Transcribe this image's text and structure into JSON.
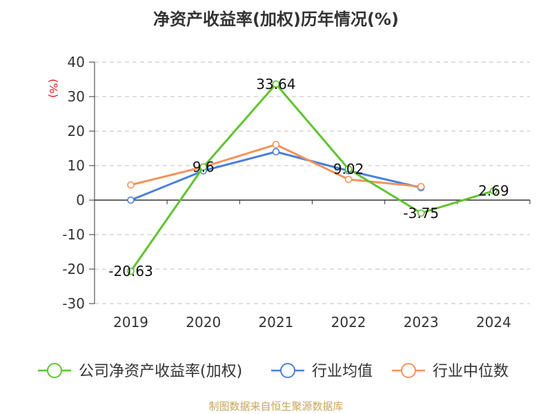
{
  "chart_data": {
    "type": "line",
    "title": "净资产收益率(加权)历年情况(%)",
    "ylabel": "(%)",
    "categories": [
      "2019",
      "2020",
      "2021",
      "2022",
      "2023",
      "2024"
    ],
    "ylim": [
      -30,
      40
    ],
    "yticks": [
      40,
      30,
      20,
      10,
      0,
      -10,
      -20,
      -30
    ],
    "grid": true,
    "legend_position": "bottom",
    "series": [
      {
        "name": "公司净资产收益率(加权)",
        "color": "#5fc330",
        "values": [
          -20.63,
          9.6,
          33.64,
          9.02,
          -3.75,
          2.69
        ],
        "labels": [
          "-20.63",
          "9.6",
          "33.64",
          "9.02",
          "-3.75",
          "2.69"
        ]
      },
      {
        "name": "行业均值",
        "color": "#4a7fdb",
        "values": [
          0.0,
          8.5,
          14.0,
          8.5,
          3.6,
          null
        ]
      },
      {
        "name": "行业中位数",
        "color": "#f4925a",
        "values": [
          4.4,
          9.6,
          16.1,
          6.0,
          3.9,
          null
        ]
      }
    ]
  },
  "source": "制图数据来自恒生聚源数据库"
}
